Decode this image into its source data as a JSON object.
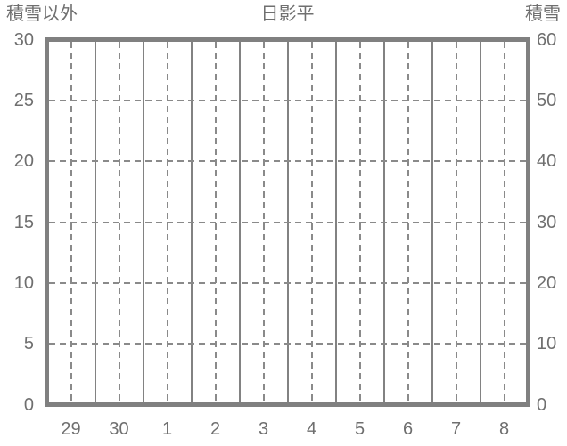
{
  "chart_data": {
    "type": "line",
    "title": "日影平",
    "left_axis": {
      "label": "積雪以外",
      "ticks": [
        30,
        25,
        20,
        15,
        10,
        5,
        0
      ],
      "range": [
        0,
        30
      ]
    },
    "right_axis": {
      "label": "積雪",
      "ticks": [
        60,
        50,
        40,
        30,
        20,
        10,
        0
      ],
      "range": [
        0,
        60
      ]
    },
    "x_axis": {
      "categories": [
        "29",
        "30",
        "1",
        "2",
        "3",
        "4",
        "5",
        "6",
        "7",
        "8"
      ],
      "minor_gridline": "dashed-at-category-center",
      "major_gridline": "solid-at-category-boundary"
    },
    "series": [],
    "grid": true,
    "legend": null,
    "colors": {
      "axis_border": "#808080",
      "gridline": "#8a8a8a",
      "text": "#6f6f6f",
      "background": "#ffffff"
    }
  }
}
